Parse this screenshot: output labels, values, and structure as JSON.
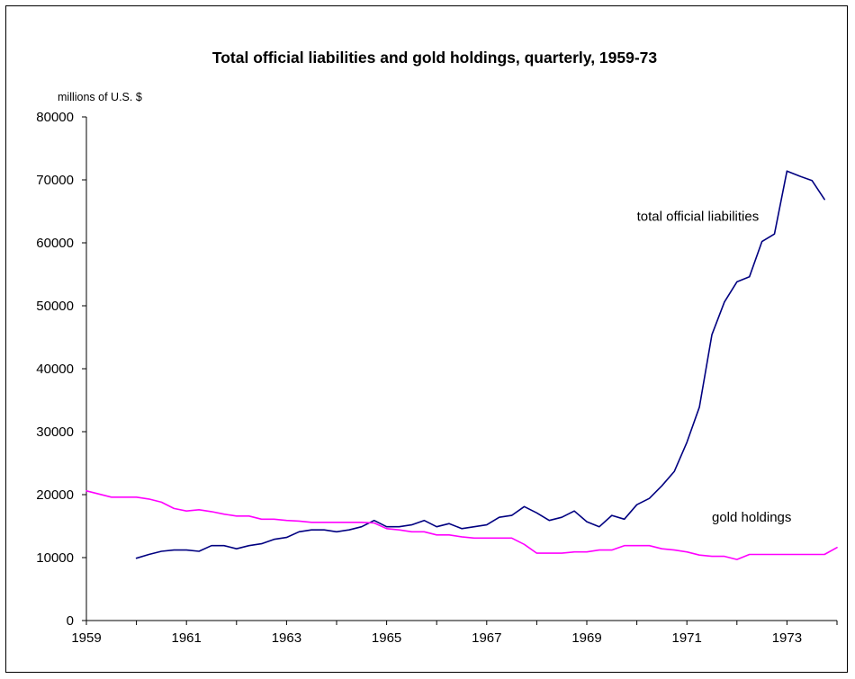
{
  "chart_data": {
    "type": "line",
    "title": "Total official liabilities and gold holdings, quarterly, 1959-73",
    "ylabel": "millions of U.S. $",
    "xlabel": "",
    "xlim": [
      1959,
      1974
    ],
    "ylim": [
      0,
      80000
    ],
    "xticks": [
      "1959",
      "1961",
      "1963",
      "1965",
      "1967",
      "1969",
      "1971",
      "1973"
    ],
    "yticks": [
      "0",
      "10000",
      "20000",
      "30000",
      "40000",
      "50000",
      "60000",
      "70000",
      "80000"
    ],
    "grid": false,
    "legend": "none",
    "series": [
      {
        "name": "total official liabilities",
        "color": "#000080",
        "x": [
          1960.0,
          1960.25,
          1960.5,
          1960.75,
          1961.0,
          1961.25,
          1961.5,
          1961.75,
          1962.0,
          1962.25,
          1962.5,
          1962.75,
          1963.0,
          1963.25,
          1963.5,
          1963.75,
          1964.0,
          1964.25,
          1964.5,
          1964.75,
          1965.0,
          1965.25,
          1965.5,
          1965.75,
          1966.0,
          1966.25,
          1966.5,
          1966.75,
          1967.0,
          1967.25,
          1967.5,
          1967.75,
          1968.0,
          1968.25,
          1968.5,
          1968.75,
          1969.0,
          1969.25,
          1969.5,
          1969.75,
          1970.0,
          1970.25,
          1970.5,
          1970.75,
          1971.0,
          1971.25,
          1971.5,
          1971.75,
          1972.0,
          1972.25,
          1972.5,
          1972.75,
          1973.0,
          1973.25,
          1973.5,
          1973.75
        ],
        "y": [
          9900,
          10500,
          11000,
          11200,
          11200,
          11000,
          11900,
          11900,
          11400,
          11900,
          12200,
          12900,
          13200,
          14100,
          14400,
          14400,
          14100,
          14400,
          14900,
          15900,
          14900,
          14900,
          15200,
          15900,
          14900,
          15400,
          14600,
          14900,
          15200,
          16400,
          16700,
          18100,
          17100,
          15900,
          16400,
          17400,
          15700,
          14900,
          16700,
          16100,
          18400,
          19400,
          21400,
          23700,
          28300,
          33900,
          45400,
          50600,
          53800,
          54600,
          60200,
          61400,
          71400,
          70600,
          69900,
          66900
        ]
      },
      {
        "name": "gold holdings",
        "color": "#ff00ff",
        "x": [
          1959.0,
          1959.25,
          1959.5,
          1959.75,
          1960.0,
          1960.25,
          1960.5,
          1960.75,
          1961.0,
          1961.25,
          1961.5,
          1961.75,
          1962.0,
          1962.25,
          1962.5,
          1962.75,
          1963.0,
          1963.25,
          1963.5,
          1963.75,
          1964.0,
          1964.25,
          1964.5,
          1964.75,
          1965.0,
          1965.25,
          1965.5,
          1965.75,
          1966.0,
          1966.25,
          1966.5,
          1966.75,
          1967.0,
          1967.25,
          1967.5,
          1967.75,
          1968.0,
          1968.25,
          1968.5,
          1968.75,
          1969.0,
          1969.25,
          1969.5,
          1969.75,
          1970.0,
          1970.25,
          1970.5,
          1970.75,
          1971.0,
          1971.25,
          1971.5,
          1971.75,
          1972.0,
          1972.25,
          1972.5,
          1972.75,
          1973.0,
          1973.25,
          1973.5,
          1973.75,
          1974.0
        ],
        "y": [
          20600,
          20100,
          19600,
          19600,
          19600,
          19300,
          18800,
          17800,
          17400,
          17600,
          17300,
          16900,
          16600,
          16600,
          16100,
          16100,
          15900,
          15800,
          15600,
          15600,
          15600,
          15600,
          15600,
          15500,
          14600,
          14400,
          14100,
          14100,
          13600,
          13600,
          13300,
          13100,
          13100,
          13100,
          13100,
          12100,
          10700,
          10700,
          10700,
          10900,
          10900,
          11200,
          11200,
          11900,
          11900,
          11900,
          11400,
          11200,
          10900,
          10400,
          10200,
          10200,
          9700,
          10500,
          10500,
          10500,
          10500,
          10500,
          10500,
          10500,
          11600
        ]
      }
    ],
    "annotations": [
      {
        "text": "total official liabilities",
        "x": 1970.0,
        "y": 63500
      },
      {
        "text": "gold holdings",
        "x": 1971.5,
        "y": 15700
      }
    ]
  }
}
